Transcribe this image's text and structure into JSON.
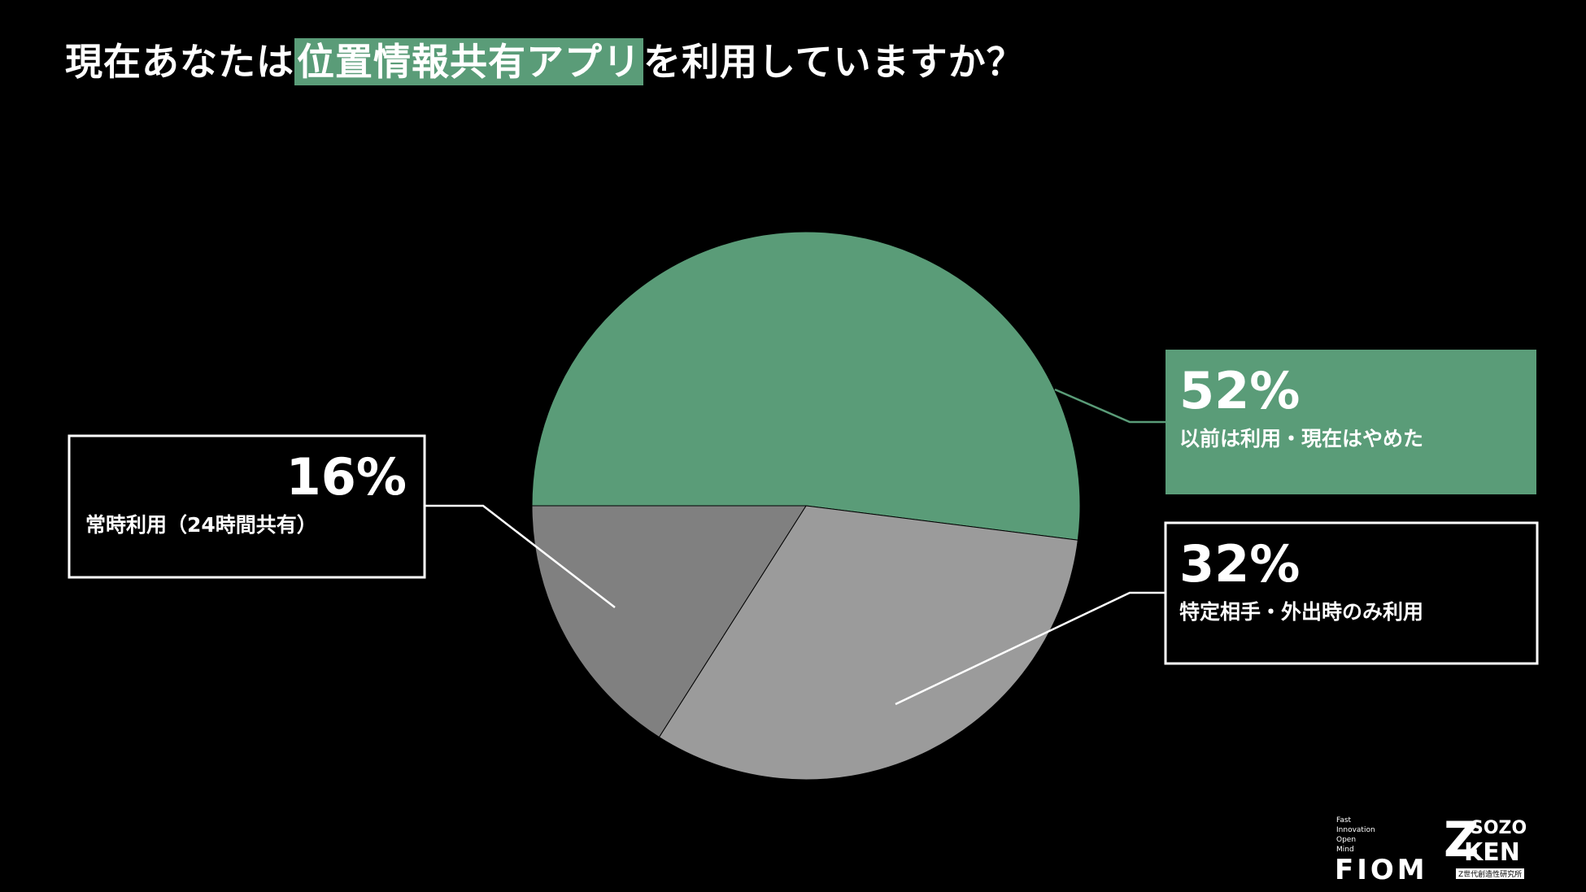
{
  "chart_data": {
    "type": "pie",
    "title_segments": [
      "現在あなたは",
      "位置情報共有アプリ",
      "を利用していますか？"
    ],
    "categories": [
      "以前は利用・現在はやめた",
      "特定相手・外出時のみ利用",
      "常時利用（24時間共有）"
    ],
    "values": [
      52,
      32,
      16
    ],
    "value_labels": [
      "52%",
      "32%",
      "16%"
    ],
    "colors": [
      "#5a9c78",
      "#9b9b9b",
      "#808080"
    ],
    "highlight_color": "#5a9c78"
  },
  "logos": {
    "fiom_tagline": [
      "Fast",
      "Innovation",
      "Open",
      "Mind"
    ],
    "fiom": "FIOM",
    "sozo": "SOZO",
    "ken": "KEN",
    "sozo_sub": "Z世代創造性研究所"
  }
}
